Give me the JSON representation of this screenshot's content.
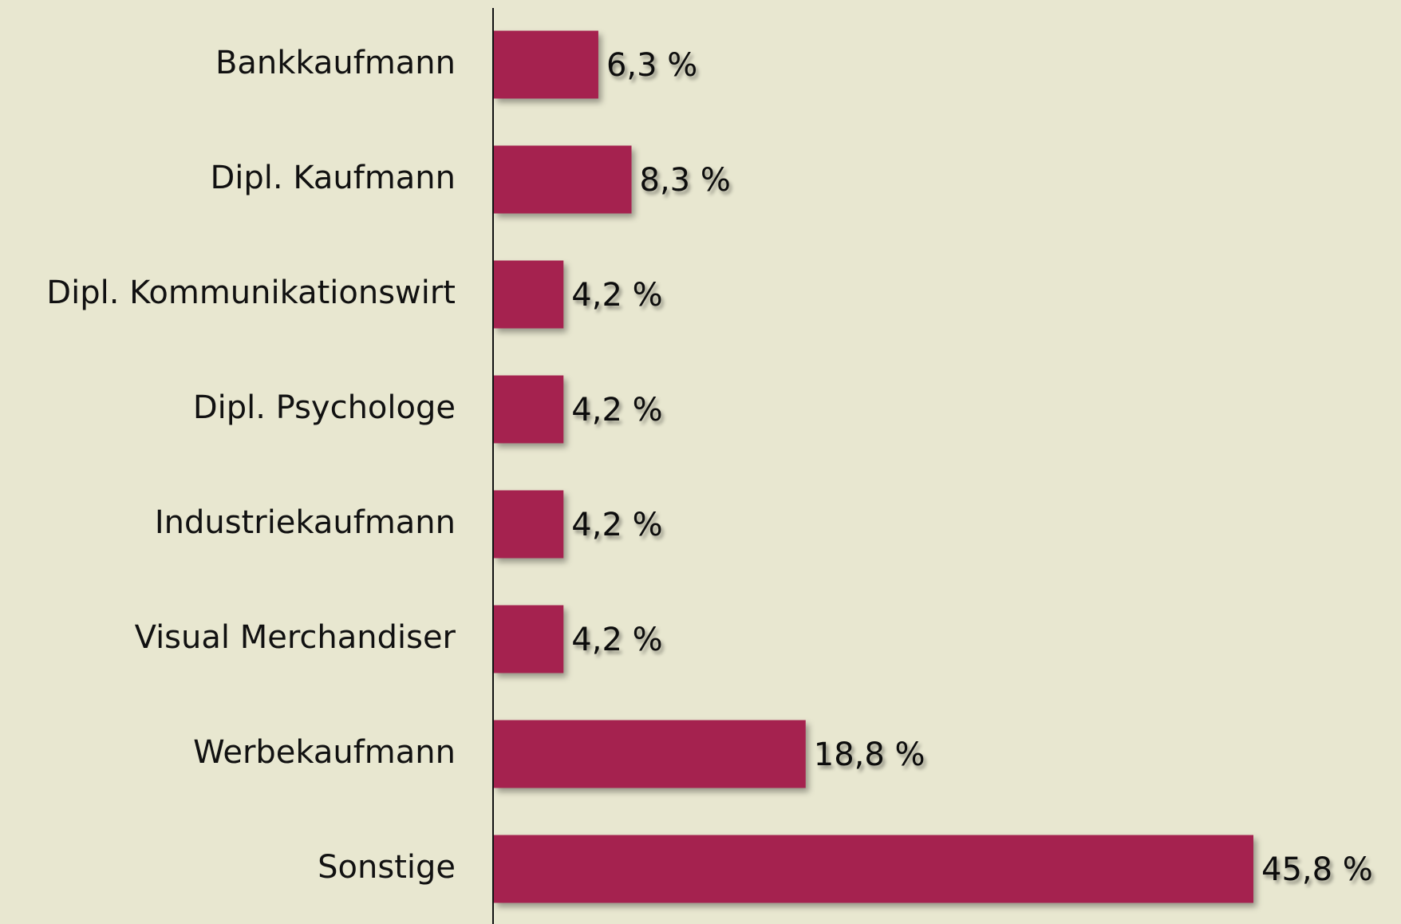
{
  "chart_data": {
    "type": "barh",
    "categories": [
      "Bankkaufmann",
      "Dipl. Kaufmann",
      "Dipl. Kommunikationswirt",
      "Dipl. Psychologe",
      "Industriekaufmann",
      "Visual Merchandiser",
      "Werbekaufmann",
      "Sonstige"
    ],
    "values": [
      6.3,
      8.3,
      4.2,
      4.2,
      4.2,
      4.2,
      18.8,
      45.8
    ],
    "value_labels": [
      "6,3 %",
      "8,3 %",
      "4,2 %",
      "4,2 %",
      "4,2 %",
      "4,2 %",
      "18,8 %",
      "45,8 %"
    ],
    "color": "#a52350"
  }
}
